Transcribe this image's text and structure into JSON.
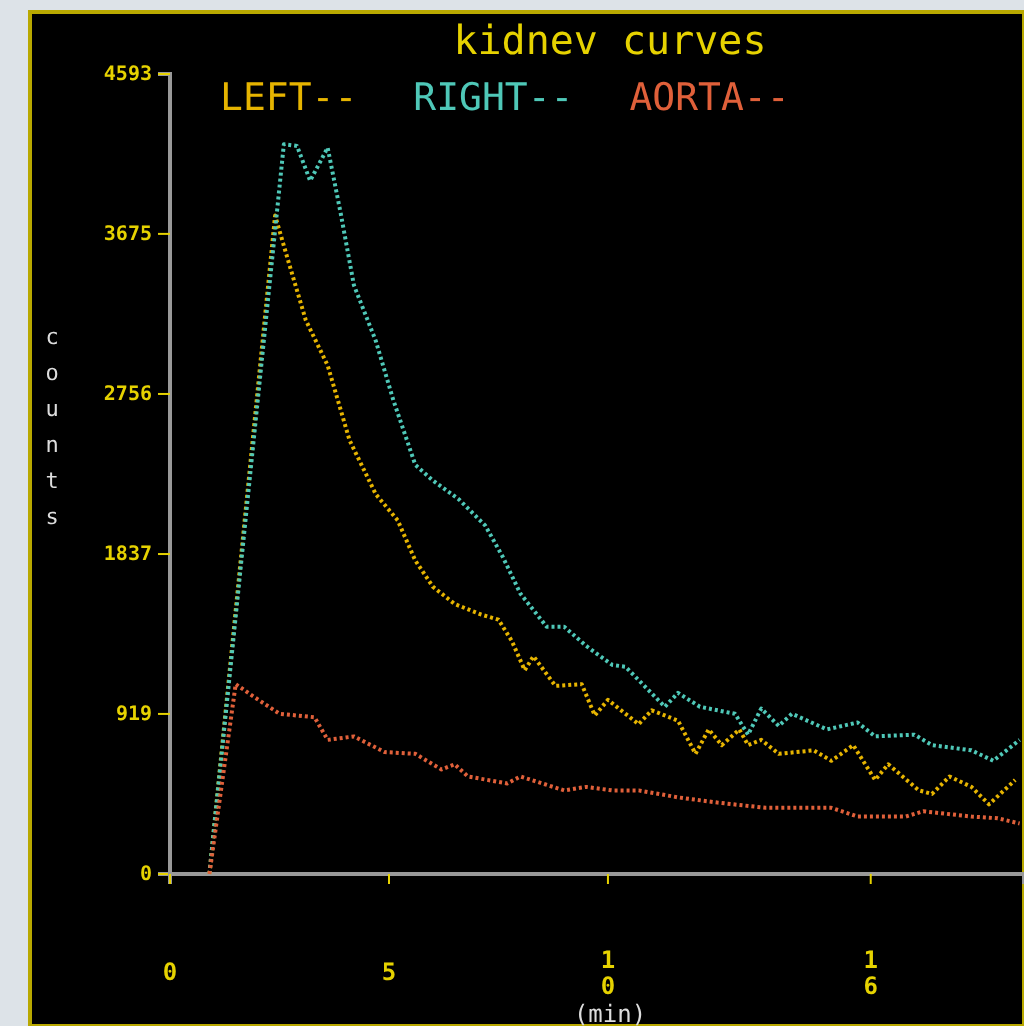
{
  "chart_data": {
    "type": "line",
    "title": "kidnev curves",
    "xlabel": "(min)",
    "ylabel": "counts",
    "xlim": [
      0,
      19.5
    ],
    "ylim": [
      0,
      4593
    ],
    "xticks": [
      0,
      5,
      10,
      16
    ],
    "yticks": [
      0,
      919,
      1837,
      2756,
      3675,
      4593
    ],
    "legend": "top",
    "grid": false,
    "marker": "none",
    "line_style": "dotted",
    "series": [
      {
        "name": "LEFT--",
        "color": "#e6b400",
        "x": [
          0.9,
          2.4,
          2.7,
          3.1,
          3.6,
          4.1,
          4.7,
          5.2,
          5.6,
          6.0,
          6.5,
          7.1,
          7.5,
          7.8,
          8.1,
          8.3,
          8.8,
          9.4,
          9.7,
          10.0,
          10.7,
          11.0,
          11.6,
          12.0,
          12.3,
          12.6,
          13.0,
          13.2,
          13.5,
          13.9,
          14.7,
          15.1,
          15.6,
          16.1,
          16.4,
          17.1,
          17.4,
          17.8,
          18.3,
          18.7,
          19.3
        ],
        "values": [
          0,
          3780,
          3520,
          3180,
          2920,
          2490,
          2180,
          2030,
          1800,
          1650,
          1550,
          1490,
          1460,
          1340,
          1170,
          1250,
          1080,
          1090,
          910,
          1000,
          860,
          940,
          880,
          690,
          830,
          740,
          830,
          740,
          770,
          690,
          710,
          650,
          740,
          540,
          630,
          480,
          460,
          560,
          500,
          400,
          540
        ]
      },
      {
        "name": "RIGHT--",
        "color": "#4fc8b8",
        "x": [
          0.9,
          2.6,
          2.9,
          3.2,
          3.6,
          3.9,
          4.2,
          4.7,
          5.1,
          5.6,
          6.0,
          6.6,
          7.2,
          7.6,
          8.0,
          8.6,
          9.0,
          9.5,
          10.1,
          10.4,
          11.3,
          11.6,
          12.1,
          12.9,
          13.2,
          13.5,
          13.9,
          14.2,
          15.0,
          15.7,
          16.1,
          17.0,
          17.4,
          18.3,
          18.8,
          19.4
        ],
        "values": [
          0,
          4190,
          4180,
          3980,
          4170,
          3790,
          3380,
          3060,
          2720,
          2350,
          2260,
          2150,
          2000,
          1820,
          1610,
          1420,
          1420,
          1310,
          1200,
          1190,
          960,
          1040,
          960,
          920,
          800,
          950,
          850,
          920,
          830,
          870,
          790,
          800,
          740,
          710,
          650,
          770
        ]
      },
      {
        "name": "AORTA--",
        "color": "#e0603a",
        "x": [
          0.9,
          1.5,
          1.9,
          2.5,
          3.3,
          3.6,
          4.2,
          4.9,
          5.6,
          6.2,
          6.5,
          6.8,
          7.7,
          8.0,
          9.0,
          9.5,
          10.1,
          10.7,
          11.6,
          12.5,
          13.6,
          15.1,
          15.7,
          16.8,
          17.2,
          18.3,
          18.9,
          19.4
        ],
        "values": [
          0,
          1090,
          1020,
          920,
          900,
          770,
          790,
          700,
          690,
          600,
          630,
          560,
          520,
          560,
          480,
          500,
          480,
          480,
          440,
          410,
          380,
          380,
          330,
          330,
          360,
          330,
          320,
          290
        ]
      }
    ]
  }
}
